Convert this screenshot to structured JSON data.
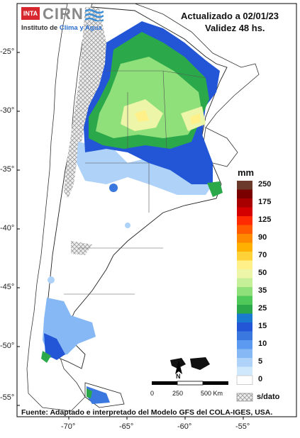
{
  "logo": {
    "badge_text": "INTA",
    "org_name": "CIRN",
    "institute_line": "Instituto de Clima y Agua",
    "institute_prefix": "Instituto de ",
    "institute_highlight": "Clima y Agua"
  },
  "header": {
    "updated": "Actualizado a 02/01/23",
    "validity": "Validez 48 hs."
  },
  "axes": {
    "lat_ticks": [
      "-25°",
      "-30°",
      "-35°",
      "-40°",
      "-45°",
      "-50°",
      "-55°"
    ],
    "lon_ticks": [
      "-70°",
      "-65°",
      "-60°",
      "-55°"
    ]
  },
  "legend": {
    "unit": "mm",
    "classes": [
      {
        "label": "250",
        "color": "#6b3a2a"
      },
      {
        "label": "",
        "color": "#7a0000"
      },
      {
        "label": "175",
        "color": "#a80000"
      },
      {
        "label": "",
        "color": "#d40000"
      },
      {
        "label": "125",
        "color": "#ff2a00"
      },
      {
        "label": "",
        "color": "#ff5a00"
      },
      {
        "label": "90",
        "color": "#ff8a00"
      },
      {
        "label": "",
        "color": "#ffb000"
      },
      {
        "label": "70",
        "color": "#ffd23a"
      },
      {
        "label": "",
        "color": "#fff08a"
      },
      {
        "label": "50",
        "color": "#ecf5a8"
      },
      {
        "label": "",
        "color": "#c6ef9a"
      },
      {
        "label": "35",
        "color": "#8fe07a"
      },
      {
        "label": "",
        "color": "#4fc95a"
      },
      {
        "label": "25",
        "color": "#2aa84a"
      },
      {
        "label": "",
        "color": "#1a7ad0"
      },
      {
        "label": "15",
        "color": "#2256d6"
      },
      {
        "label": "",
        "color": "#3a78e0"
      },
      {
        "label": "10",
        "color": "#5b9af0"
      },
      {
        "label": "",
        "color": "#86b8f5"
      },
      {
        "label": "5",
        "color": "#aed2f8"
      },
      {
        "label": "",
        "color": "#cfe8fb"
      },
      {
        "label": "0",
        "color": "#ffffff"
      }
    ],
    "nodata_label": "s/dato"
  },
  "scalebar": {
    "label_start": "0",
    "label_mid": "250",
    "label_end": "500 Km"
  },
  "north_arrow": {
    "letter": "N"
  },
  "source": "Fuente: Adaptado e interpretado del Modelo GFS del COLA-IGES, USA.",
  "colors": {
    "frame": "#000000",
    "land": "#ffffff",
    "nodata": "#d8d8d8",
    "border": "#555555"
  }
}
